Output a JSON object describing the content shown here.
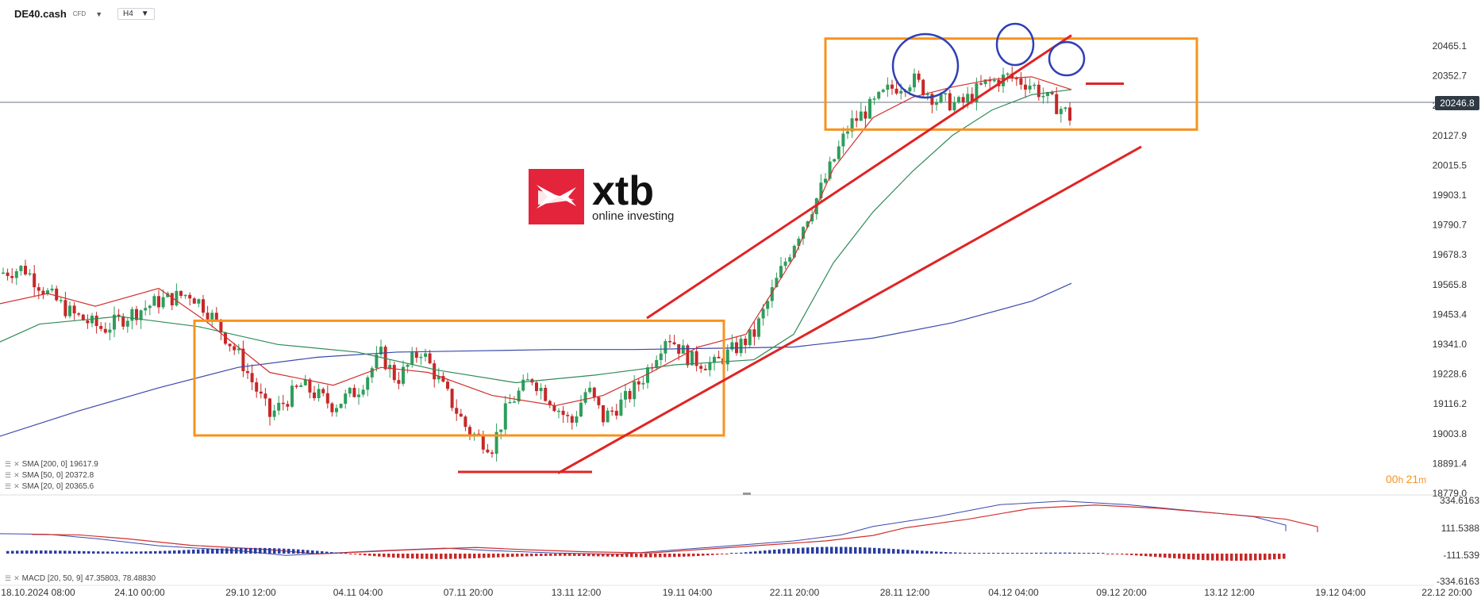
{
  "header": {
    "symbol": "DE40.cash",
    "symbol_suffix": "CFD",
    "timeframe": "H4"
  },
  "logo": {
    "name": "xtb",
    "tagline": "online investing"
  },
  "indicators": [
    {
      "label": "SMA [200, 0] 19617.9",
      "color": "#3949ab"
    },
    {
      "label": "SMA [50, 0] 20372.8",
      "color": "#2e8b57"
    },
    {
      "label": "SMA [20, 0] 20365.6",
      "color": "#d32f2f"
    }
  ],
  "macd_label": "MACD [20, 50, 9] 47.35803, 78.48830",
  "countdown": {
    "h": "00",
    "m": "21"
  },
  "current_price": "20246.8",
  "colors": {
    "up": "#2e9e5b",
    "down": "#c62828",
    "box": "#f7931e",
    "trend": "#e02424",
    "circle": "#2f3fb5",
    "sma200": "#3949ab",
    "sma50": "#2e8b57",
    "sma20": "#d32f2f"
  },
  "chart_data": {
    "type": "candlestick",
    "y_axis_ticks": [
      "20465.1",
      "20352.7",
      "20240.3",
      "20127.9",
      "20015.5",
      "19903.1",
      "19790.7",
      "19678.3",
      "19565.8",
      "19453.4",
      "19341.0",
      "19228.6",
      "19116.2",
      "19003.8",
      "18891.4",
      "18779.0"
    ],
    "ylim": [
      18779.0,
      20562.0
    ],
    "x_axis_ticks": [
      "18.10.2024 08:00",
      "24.10 00:00",
      "29.10 12:00",
      "04.11 04:00",
      "07.11 20:00",
      "13.11 12:00",
      "19.11 04:00",
      "22.11 20:00",
      "28.11 12:00",
      "04.12 04:00",
      "09.12 20:00",
      "13.12 12:00",
      "19.12 04:00",
      "22.12 20:00"
    ],
    "macd_ticks": [
      "334.6163",
      "111.5388",
      "-111.539",
      "-334.6163"
    ],
    "macd_ylim": [
      -334.6163,
      334.6163
    ],
    "series": [
      {
        "name": "SMA [200, 0]",
        "values": [
          [
            0,
            19000
          ],
          [
            100,
            19100
          ],
          [
            200,
            19190
          ],
          [
            300,
            19270
          ],
          [
            400,
            19310
          ],
          [
            500,
            19330
          ],
          [
            600,
            19335
          ],
          [
            700,
            19340
          ],
          [
            800,
            19340
          ],
          [
            900,
            19345
          ],
          [
            1000,
            19350
          ],
          [
            1100,
            19385
          ],
          [
            1200,
            19445
          ],
          [
            1300,
            19530
          ],
          [
            1350,
            19600
          ]
        ]
      },
      {
        "name": "SMA [50, 0]",
        "values": [
          [
            0,
            19370
          ],
          [
            50,
            19440
          ],
          [
            150,
            19470
          ],
          [
            250,
            19430
          ],
          [
            350,
            19360
          ],
          [
            450,
            19330
          ],
          [
            550,
            19260
          ],
          [
            650,
            19210
          ],
          [
            750,
            19240
          ],
          [
            850,
            19280
          ],
          [
            950,
            19300
          ],
          [
            1000,
            19400
          ],
          [
            1050,
            19680
          ],
          [
            1100,
            19880
          ],
          [
            1150,
            20040
          ],
          [
            1200,
            20180
          ],
          [
            1250,
            20280
          ],
          [
            1300,
            20340
          ],
          [
            1350,
            20360
          ]
        ]
      },
      {
        "name": "SMA [20, 0]",
        "values": [
          [
            0,
            19520
          ],
          [
            60,
            19560
          ],
          [
            120,
            19510
          ],
          [
            200,
            19580
          ],
          [
            260,
            19450
          ],
          [
            340,
            19250
          ],
          [
            420,
            19200
          ],
          [
            480,
            19270
          ],
          [
            540,
            19250
          ],
          [
            620,
            19160
          ],
          [
            700,
            19120
          ],
          [
            760,
            19160
          ],
          [
            820,
            19250
          ],
          [
            880,
            19350
          ],
          [
            940,
            19400
          ],
          [
            1000,
            19700
          ],
          [
            1050,
            20050
          ],
          [
            1100,
            20250
          ],
          [
            1150,
            20330
          ],
          [
            1200,
            20370
          ],
          [
            1250,
            20400
          ],
          [
            1300,
            20410
          ],
          [
            1350,
            20360
          ]
        ]
      }
    ],
    "annotations": [
      {
        "type": "box",
        "from": [
          245,
          19453
        ],
        "to": [
          912,
          19003
        ]
      },
      {
        "type": "box",
        "from": [
          1040,
          20560
        ],
        "to": [
          1508,
          20203
        ]
      },
      {
        "type": "segment",
        "from": [
          577,
          18860
        ],
        "to": [
          746,
          18860
        ]
      },
      {
        "type": "segment",
        "from": [
          703,
          18855
        ],
        "to": [
          1438,
          20136
        ]
      },
      {
        "type": "segment",
        "from": [
          815,
          19463
        ],
        "to": [
          1350,
          20573
        ]
      },
      {
        "type": "segment",
        "from": [
          1368,
          20383
        ],
        "to": [
          1416,
          20383
        ]
      }
    ]
  }
}
